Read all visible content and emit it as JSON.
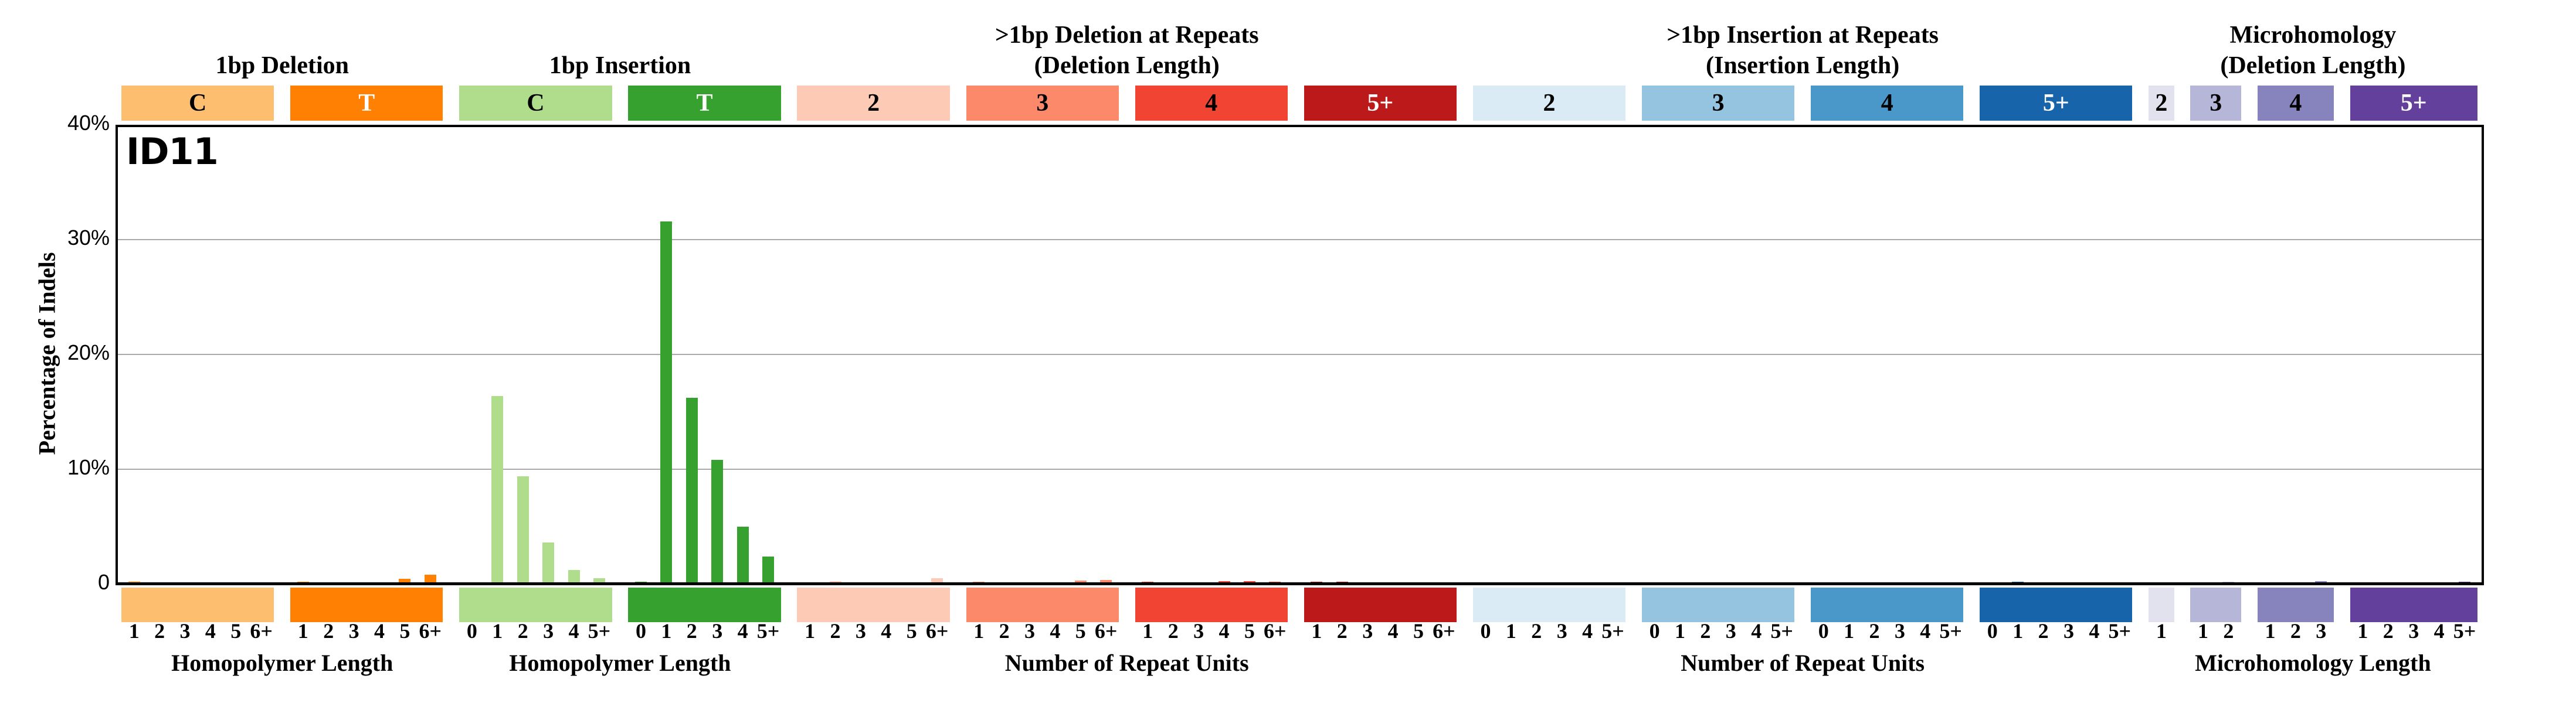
{
  "chart_data": {
    "type": "bar",
    "title": "ID11",
    "ylabel": "Percentage of Indels",
    "ylim": [
      0,
      40
    ],
    "grid": "horizontal",
    "gridlines_percent": [
      10,
      20,
      30
    ],
    "y_ticks": [
      {
        "percent": 40,
        "label": "40%"
      },
      {
        "percent": 30,
        "label": "30%"
      },
      {
        "percent": 20,
        "label": "20%"
      },
      {
        "percent": 10,
        "label": "10%"
      },
      {
        "percent": 0,
        "label": "0"
      }
    ],
    "header_groups": [
      {
        "lines": [
          "1bp Deletion"
        ],
        "from": 0,
        "to": 1
      },
      {
        "lines": [
          "1bp Insertion"
        ],
        "from": 2,
        "to": 3
      },
      {
        "lines": [
          ">1bp Deletion at Repeats",
          "(Deletion Length)"
        ],
        "from": 4,
        "to": 7
      },
      {
        "lines": [
          ">1bp Insertion at Repeats",
          "(Insertion Length)"
        ],
        "from": 8,
        "to": 11
      },
      {
        "lines": [
          "Microhomology",
          "(Deletion Length)"
        ],
        "from": 12,
        "to": 15
      }
    ],
    "axis_groups": [
      {
        "label": "Homopolymer Length",
        "from": 0,
        "to": 1
      },
      {
        "label": "Homopolymer Length",
        "from": 2,
        "to": 3
      },
      {
        "label": "Number of Repeat Units",
        "from": 4,
        "to": 7
      },
      {
        "label": "Number of Repeat Units",
        "from": 8,
        "to": 11
      },
      {
        "label": "Microhomology Length",
        "from": 12,
        "to": 15
      }
    ],
    "sections": [
      {
        "name": "1bp-deletion-C",
        "block_label": "C",
        "color": "#FDBE6F",
        "label_color": "#000000",
        "categories": [
          "1",
          "2",
          "3",
          "4",
          "5",
          "6+"
        ],
        "values": [
          0.15,
          0.06,
          0.05,
          0.02,
          0.02,
          0.02
        ]
      },
      {
        "name": "1bp-deletion-T",
        "block_label": "T",
        "color": "#FF8002",
        "label_color": "#FFFFFF",
        "categories": [
          "1",
          "2",
          "3",
          "4",
          "5",
          "6+"
        ],
        "values": [
          0.1,
          0.06,
          0.06,
          0.06,
          0.35,
          0.7
        ]
      },
      {
        "name": "1bp-insertion-C",
        "block_label": "C",
        "color": "#B0DD8B",
        "label_color": "#000000",
        "categories": [
          "0",
          "1",
          "2",
          "3",
          "4",
          "5+"
        ],
        "values": [
          0.03,
          16.3,
          9.3,
          3.5,
          1.1,
          0.4
        ]
      },
      {
        "name": "1bp-insertion-T",
        "block_label": "T",
        "color": "#36A12E",
        "label_color": "#FFFFFF",
        "categories": [
          "0",
          "1",
          "2",
          "3",
          "4",
          "5+"
        ],
        "values": [
          0.1,
          31.5,
          16.1,
          10.7,
          4.9,
          2.3
        ]
      },
      {
        "name": "deletion-repeats-len2",
        "block_label": "2",
        "color": "#FDCAB5",
        "label_color": "#000000",
        "categories": [
          "1",
          "2",
          "3",
          "4",
          "5",
          "6+"
        ],
        "values": [
          0.05,
          0.15,
          0.03,
          0.02,
          0.02,
          0.4
        ]
      },
      {
        "name": "deletion-repeats-len3",
        "block_label": "3",
        "color": "#FC8A6A",
        "label_color": "#000000",
        "categories": [
          "1",
          "2",
          "3",
          "4",
          "5",
          "6+"
        ],
        "values": [
          0.1,
          0.05,
          0.05,
          0.05,
          0.18,
          0.25
        ]
      },
      {
        "name": "deletion-repeats-len4",
        "block_label": "4",
        "color": "#F14432",
        "label_color": "#000000",
        "categories": [
          "1",
          "2",
          "3",
          "4",
          "5",
          "6+"
        ],
        "values": [
          0.1,
          0.03,
          0.03,
          0.15,
          0.15,
          0.1
        ]
      },
      {
        "name": "deletion-repeats-len5plus",
        "block_label": "5+",
        "color": "#BC191A",
        "label_color": "#FFFFFF",
        "categories": [
          "1",
          "2",
          "3",
          "4",
          "5",
          "6+"
        ],
        "values": [
          0.1,
          0.1,
          0.03,
          0.03,
          0.03,
          0.03
        ]
      },
      {
        "name": "insertion-repeats-len2",
        "block_label": "2",
        "color": "#DBEBF6",
        "label_color": "#000000",
        "categories": [
          "0",
          "1",
          "2",
          "3",
          "4",
          "5+"
        ],
        "values": [
          0.03,
          0.06,
          0.06,
          0.06,
          0.02,
          0.02
        ]
      },
      {
        "name": "insertion-repeats-len3",
        "block_label": "3",
        "color": "#94C4DF",
        "label_color": "#000000",
        "categories": [
          "0",
          "1",
          "2",
          "3",
          "4",
          "5+"
        ],
        "values": [
          0.02,
          0.02,
          0.06,
          0.02,
          0.02,
          0.02
        ]
      },
      {
        "name": "insertion-repeats-len4",
        "block_label": "4",
        "color": "#4A98C9",
        "label_color": "#000000",
        "categories": [
          "0",
          "1",
          "2",
          "3",
          "4",
          "5+"
        ],
        "values": [
          0.02,
          0.02,
          0.02,
          0.02,
          0.02,
          0.02
        ]
      },
      {
        "name": "insertion-repeats-len5plus",
        "block_label": "5+",
        "color": "#1764AB",
        "label_color": "#FFFFFF",
        "categories": [
          "0",
          "1",
          "2",
          "3",
          "4",
          "5+"
        ],
        "values": [
          0.06,
          0.1,
          0.06,
          0.02,
          0.02,
          0.02
        ]
      },
      {
        "name": "microhomology-dellen2",
        "block_label": "2",
        "color": "#E2E2EF",
        "label_color": "#000000",
        "categories": [
          "1"
        ],
        "values": [
          0.05
        ]
      },
      {
        "name": "microhomology-dellen3",
        "block_label": "3",
        "color": "#B6B6D8",
        "label_color": "#000000",
        "categories": [
          "1",
          "2"
        ],
        "values": [
          0.05,
          0.08
        ]
      },
      {
        "name": "microhomology-dellen4",
        "block_label": "4",
        "color": "#8683BD",
        "label_color": "#000000",
        "categories": [
          "1",
          "2",
          "3"
        ],
        "values": [
          0.03,
          0.05,
          0.15
        ]
      },
      {
        "name": "microhomology-dellen5plus",
        "block_label": "5+",
        "color": "#62409B",
        "label_color": "#FFFFFF",
        "categories": [
          "1",
          "2",
          "3",
          "4",
          "5+"
        ],
        "values": [
          0.05,
          0.05,
          0.05,
          0.03,
          0.08
        ]
      }
    ]
  }
}
